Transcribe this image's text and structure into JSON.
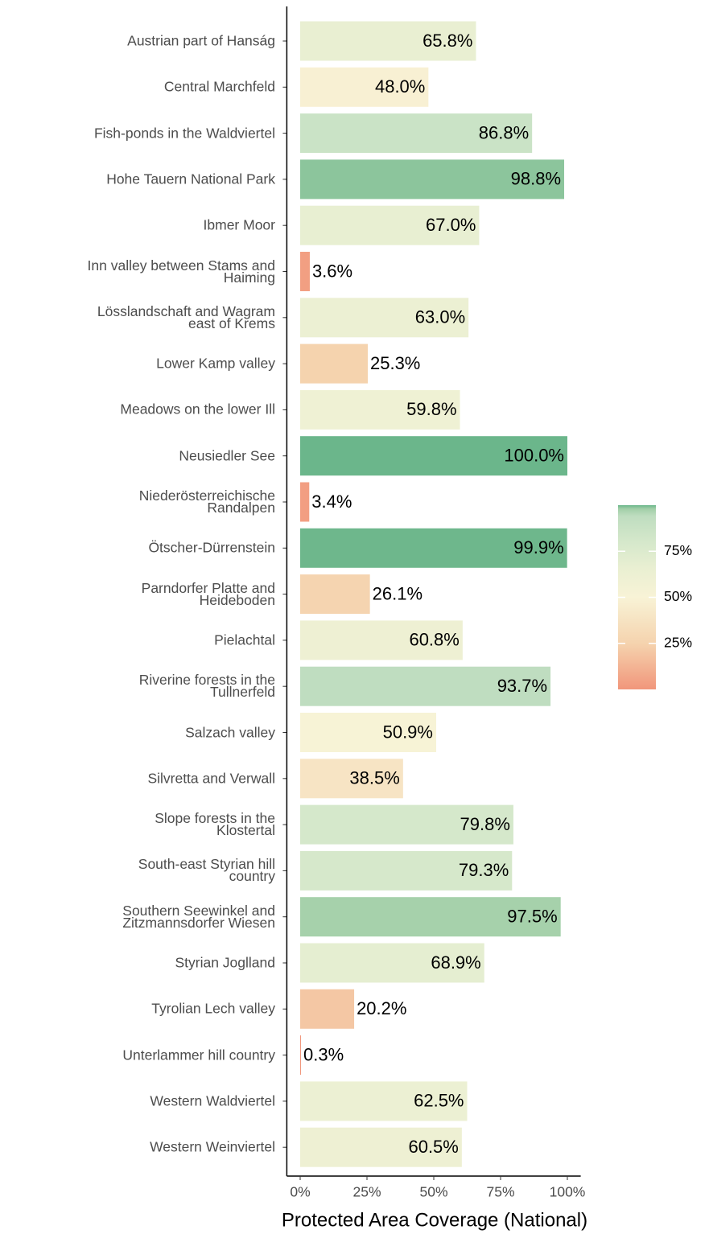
{
  "chart_data": {
    "type": "bar",
    "orientation": "horizontal",
    "x_label": "Protected Area Coverage (National)",
    "categories": [
      "Austrian part of Hanság",
      "Central Marchfeld",
      "Fish-ponds in the Waldviertel",
      "Hohe Tauern National Park",
      "Ibmer Moor",
      "Inn valley between Stams and\nHaiming",
      "Lösslandschaft and Wagram\neast of Krems",
      "Lower Kamp valley",
      "Meadows on the lower Ill",
      "Neusiedler See",
      "Niederösterreichische\nRandalpen",
      "Ötscher-Dürrenstein",
      "Parndorfer Platte and\nHeideboden",
      "Pielachtal",
      "Riverine forests in the\nTullnerfeld",
      "Salzach valley",
      "Silvretta and Verwall",
      "Slope forests in the\nKlostertal",
      "South-east Styrian hill\ncountry",
      "Southern Seewinkel and\nZitzmannsdorfer Wiesen",
      "Styrian Joglland",
      "Tyrolian Lech valley",
      "Unterlammer hill country",
      "Western Waldviertel",
      "Western Weinviertel"
    ],
    "values": [
      65.8,
      48.0,
      86.8,
      98.8,
      67.0,
      3.6,
      63.0,
      25.3,
      59.8,
      100.0,
      3.4,
      99.9,
      26.1,
      60.8,
      93.7,
      50.9,
      38.5,
      79.8,
      79.3,
      97.5,
      68.9,
      20.2,
      0.3,
      62.5,
      60.5
    ],
    "value_labels": [
      "65.8%",
      "48.0%",
      "86.8%",
      "98.8%",
      "67.0%",
      "3.6%",
      "63.0%",
      "25.3%",
      "59.8%",
      "100.0%",
      "3.4%",
      "99.9%",
      "26.1%",
      "60.8%",
      "93.7%",
      "50.9%",
      "38.5%",
      "79.8%",
      "79.3%",
      "97.5%",
      "68.9%",
      "20.2%",
      "0.3%",
      "62.5%",
      "60.5%"
    ],
    "xlim": [
      -5,
      105
    ],
    "xticks": [
      {
        "value": 0,
        "label": "0%"
      },
      {
        "value": 25,
        "label": "25%"
      },
      {
        "value": 50,
        "label": "50%"
      },
      {
        "value": 75,
        "label": "75%"
      },
      {
        "value": 100,
        "label": "100%"
      }
    ],
    "color_scale": [
      [
        0,
        "#f1967b"
      ],
      [
        25,
        "#f5d3ae"
      ],
      [
        50,
        "#f8f3d6"
      ],
      [
        66,
        "#e9efd2"
      ],
      [
        80,
        "#d5e8cb"
      ],
      [
        94,
        "#bfddc0"
      ],
      [
        98,
        "#a2cfa8"
      ],
      [
        100,
        "#6bb68b"
      ]
    ],
    "legend_ticks": [
      {
        "value": 25,
        "label": "25%"
      },
      {
        "value": 50,
        "label": "50%"
      },
      {
        "value": 75,
        "label": "75%"
      }
    ],
    "grid": false
  }
}
